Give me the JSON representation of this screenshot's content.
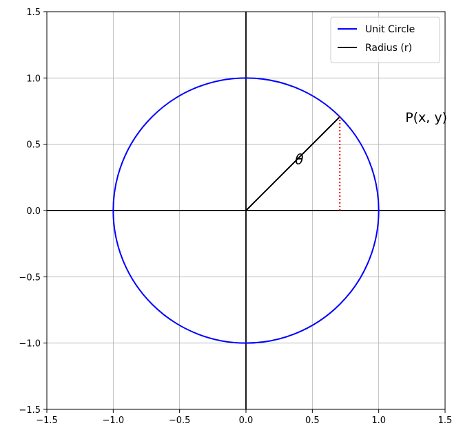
{
  "chart_data": {
    "type": "line",
    "title": "",
    "xlabel": "",
    "ylabel": "",
    "xlim": [
      -1.5,
      1.5
    ],
    "ylim": [
      -1.5,
      1.5
    ],
    "xticks": [
      -1.5,
      -1.0,
      -0.5,
      0.0,
      0.5,
      1.0,
      1.5
    ],
    "yticks": [
      -1.5,
      -1.0,
      -0.5,
      0.0,
      0.5,
      1.0,
      1.5
    ],
    "xtick_labels": [
      "−1.5",
      "−1.0",
      "−0.5",
      "0.0",
      "0.5",
      "1.0",
      "1.5"
    ],
    "ytick_labels": [
      "−1.5",
      "−1.0",
      "−0.5",
      "0.0",
      "0.5",
      "1.0",
      "1.5"
    ],
    "grid": true,
    "legend_position": "top-right",
    "series": [
      {
        "name": "Unit Circle",
        "kind": "circle",
        "center": [
          0,
          0
        ],
        "radius": 1.0,
        "color": "#0000ff"
      },
      {
        "name": "Radius (r)",
        "kind": "segment",
        "x": [
          0,
          0.7071
        ],
        "y": [
          0,
          0.7071
        ],
        "color": "#000000"
      },
      {
        "kind": "segment",
        "style": "dotted",
        "x": [
          0.7071,
          0.7071
        ],
        "y": [
          0,
          0.7071
        ],
        "color": "#ff0000"
      }
    ],
    "axes_lines": {
      "x": 0,
      "y": 0,
      "color": "#000000"
    },
    "annotations": [
      {
        "text": "P(x, y)",
        "x": 1.2,
        "y": 0.7071
      },
      {
        "text": "θ",
        "x": 0.37,
        "y": 0.35
      }
    ]
  }
}
